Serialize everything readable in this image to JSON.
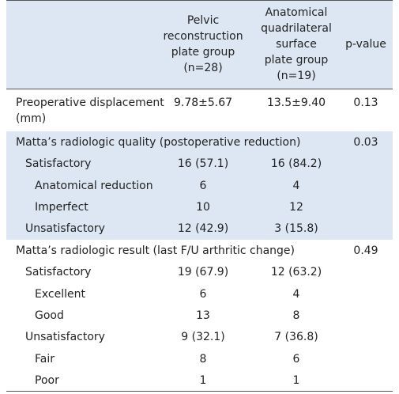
{
  "table": {
    "header": [
      [
        "Pelvic",
        "reconstruction",
        "plate group",
        "(n=28)"
      ],
      [
        "Anatomical",
        "quadrilateral",
        "surface",
        "plate group",
        "(n=19)"
      ],
      [
        "p-value"
      ]
    ],
    "groups": [
      {
        "rows": [
          {
            "level": 0,
            "label": [
              "Preoperative displacement",
              "(mm)"
            ],
            "values": [
              "9.78±5.67",
              "13.5±9.40"
            ],
            "p": "0.13"
          }
        ]
      },
      {
        "rows": [
          {
            "level": 0,
            "label": [
              "Matta’s radiologic quality (postoperative reduction)"
            ],
            "p": "0.03"
          },
          {
            "level": 1,
            "label": [
              "Satisfactory"
            ],
            "values": [
              "16 (57.1)",
              "16 (84.2)"
            ]
          },
          {
            "level": 2,
            "label": [
              "Anatomical reduction"
            ],
            "values": [
              "6",
              "4"
            ]
          },
          {
            "level": 2,
            "label": [
              "Imperfect"
            ],
            "values": [
              "10",
              "12"
            ]
          },
          {
            "level": 1,
            "label": [
              "Unsatisfactory"
            ],
            "values": [
              "12 (42.9)",
              "3 (15.8)"
            ]
          }
        ]
      },
      {
        "rows": [
          {
            "level": 0,
            "label": [
              "Matta’s radiologic result (last F/U arthritic change)"
            ],
            "p": "0.49"
          },
          {
            "level": 1,
            "label": [
              "Satisfactory"
            ],
            "values": [
              "19 (67.9)",
              "12 (63.2)"
            ]
          },
          {
            "level": 2,
            "label": [
              "Excellent"
            ],
            "values": [
              "6",
              "4"
            ]
          },
          {
            "level": 2,
            "label": [
              "Good"
            ],
            "values": [
              "13",
              "8"
            ]
          },
          {
            "level": 1,
            "label": [
              "Unsatisfactory"
            ],
            "values": [
              "9 (32.1)",
              "7 (36.8)"
            ]
          },
          {
            "level": 2,
            "label": [
              "Fair"
            ],
            "values": [
              "8",
              "6"
            ]
          },
          {
            "level": 2,
            "label": [
              "Poor"
            ],
            "values": [
              "1",
              "1"
            ]
          }
        ]
      }
    ]
  }
}
